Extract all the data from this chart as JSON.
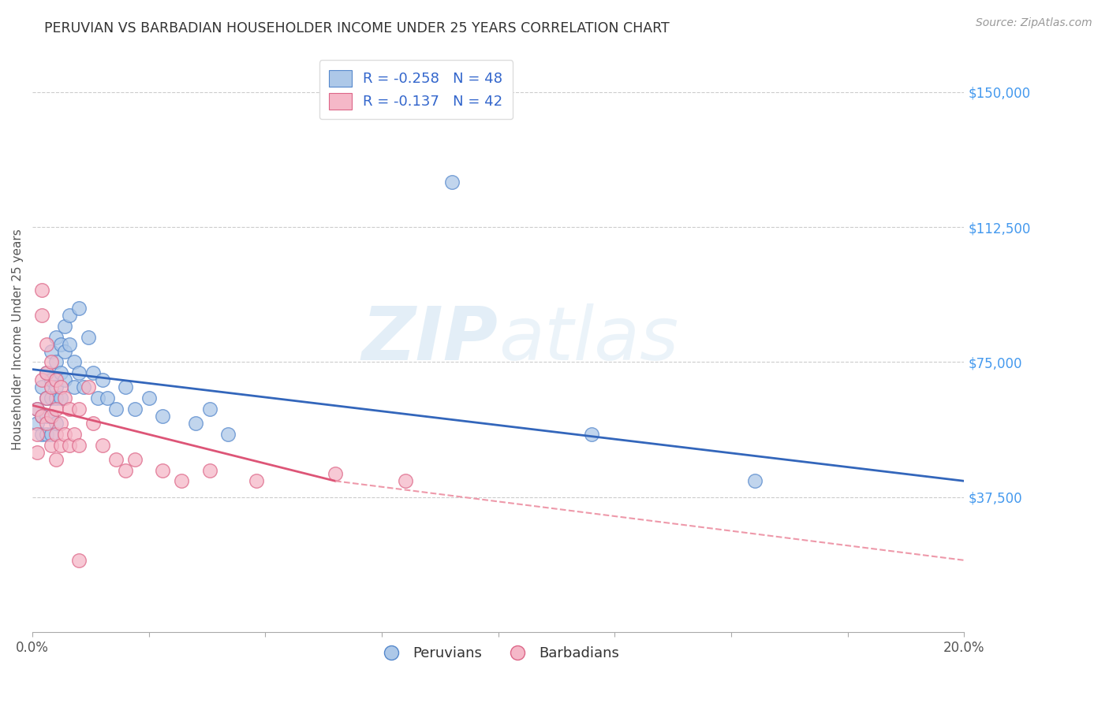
{
  "title": "PERUVIAN VS BARBADIAN HOUSEHOLDER INCOME UNDER 25 YEARS CORRELATION CHART",
  "source": "Source: ZipAtlas.com",
  "ylabel": "Householder Income Under 25 years",
  "xlim": [
    0.0,
    0.2
  ],
  "ylim": [
    0,
    162500
  ],
  "yticks": [
    37500,
    75000,
    112500,
    150000
  ],
  "ytick_labels": [
    "$37,500",
    "$75,000",
    "$112,500",
    "$150,000"
  ],
  "xticks": [
    0.0,
    0.025,
    0.05,
    0.075,
    0.1,
    0.125,
    0.15,
    0.175,
    0.2
  ],
  "xtick_labels": [
    "0.0%",
    "",
    "",
    "",
    "",
    "",
    "",
    "",
    "20.0%"
  ],
  "peruvian_color": "#adc8e8",
  "peruvian_edge": "#5588cc",
  "barbadian_color": "#f5b8c8",
  "barbadian_edge": "#dd6688",
  "trend_peruvian_color": "#3366bb",
  "trend_barbadian_color": "#dd5577",
  "trend_barbadian_dashed_color": "#ee99aa",
  "legend_R_peruvian": "-0.258",
  "legend_N_peruvian": "48",
  "legend_R_barbadian": "-0.137",
  "legend_N_barbadian": "42",
  "watermark_zip": "ZIP",
  "watermark_atlas": "atlas",
  "peruvian_x": [
    0.001,
    0.001,
    0.002,
    0.002,
    0.002,
    0.003,
    0.003,
    0.003,
    0.003,
    0.004,
    0.004,
    0.004,
    0.004,
    0.004,
    0.005,
    0.005,
    0.005,
    0.005,
    0.005,
    0.006,
    0.006,
    0.006,
    0.007,
    0.007,
    0.007,
    0.008,
    0.008,
    0.009,
    0.009,
    0.01,
    0.01,
    0.011,
    0.012,
    0.013,
    0.014,
    0.015,
    0.016,
    0.018,
    0.02,
    0.022,
    0.025,
    0.028,
    0.035,
    0.038,
    0.042,
    0.09,
    0.12,
    0.155
  ],
  "peruvian_y": [
    62000,
    58000,
    68000,
    60000,
    55000,
    72000,
    65000,
    60000,
    55000,
    78000,
    70000,
    65000,
    60000,
    55000,
    82000,
    75000,
    68000,
    65000,
    58000,
    80000,
    72000,
    65000,
    85000,
    78000,
    70000,
    88000,
    80000,
    75000,
    68000,
    90000,
    72000,
    68000,
    82000,
    72000,
    65000,
    70000,
    65000,
    62000,
    68000,
    62000,
    65000,
    60000,
    58000,
    62000,
    55000,
    125000,
    55000,
    42000
  ],
  "barbadian_x": [
    0.001,
    0.001,
    0.001,
    0.002,
    0.002,
    0.002,
    0.002,
    0.003,
    0.003,
    0.003,
    0.003,
    0.004,
    0.004,
    0.004,
    0.004,
    0.005,
    0.005,
    0.005,
    0.005,
    0.006,
    0.006,
    0.006,
    0.007,
    0.007,
    0.008,
    0.008,
    0.009,
    0.01,
    0.01,
    0.012,
    0.013,
    0.015,
    0.018,
    0.02,
    0.022,
    0.028,
    0.032,
    0.038,
    0.048,
    0.065,
    0.08,
    0.01
  ],
  "barbadian_y": [
    62000,
    55000,
    50000,
    95000,
    88000,
    70000,
    60000,
    80000,
    72000,
    65000,
    58000,
    75000,
    68000,
    60000,
    52000,
    70000,
    62000,
    55000,
    48000,
    68000,
    58000,
    52000,
    65000,
    55000,
    62000,
    52000,
    55000,
    62000,
    52000,
    68000,
    58000,
    52000,
    48000,
    45000,
    48000,
    45000,
    42000,
    45000,
    42000,
    44000,
    42000,
    20000
  ],
  "trend_peru_x0": 0.0,
  "trend_peru_y0": 73000,
  "trend_peru_x1": 0.2,
  "trend_peru_y1": 42000,
  "trend_barb_solid_x0": 0.0,
  "trend_barb_solid_y0": 63000,
  "trend_barb_solid_x1": 0.065,
  "trend_barb_solid_y1": 42000,
  "trend_barb_dash_x0": 0.065,
  "trend_barb_dash_y0": 42000,
  "trend_barb_dash_x1": 0.2,
  "trend_barb_dash_y1": 20000
}
